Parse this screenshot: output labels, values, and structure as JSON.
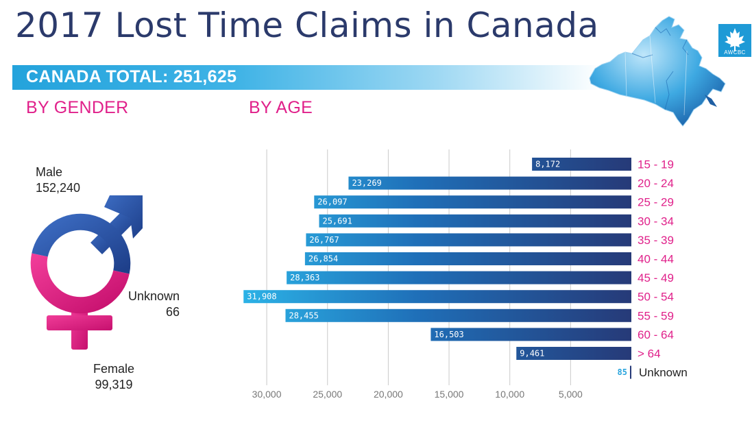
{
  "title": "2017 Lost Time Claims in Canada",
  "total": {
    "text": "CANADA TOTAL: 251,625"
  },
  "logo": {
    "text": "AWCBC"
  },
  "sections": {
    "gender": "BY GENDER",
    "age": "BY AGE"
  },
  "gender": {
    "male": {
      "label": "Male",
      "value": "152,240"
    },
    "unknown": {
      "label": "Unknown",
      "value": "66"
    },
    "female": {
      "label": "Female",
      "value": "99,319"
    }
  },
  "colors": {
    "title": "#2b3a6b",
    "accent_pink": "#e0208a",
    "band_blue": "#24a3dc",
    "bar_dark": "#263a78",
    "bar_light": "#2aa5dd"
  },
  "chart_data": {
    "type": "bar",
    "orientation": "horizontal",
    "direction": "bars extend right-to-left",
    "categories": [
      "15 - 19",
      "20 - 24",
      "25 - 29",
      "30 - 34",
      "35 - 39",
      "40 - 44",
      "45 - 49",
      "50 - 54",
      "55 - 59",
      "60 - 64",
      "> 64"
    ],
    "values": [
      8172,
      23269,
      26097,
      25691,
      26767,
      26854,
      28363,
      31908,
      28455,
      16503,
      9461
    ],
    "value_labels": [
      "8,172",
      "23,269",
      "26,097",
      "25,691",
      "26,767",
      "26,854",
      "28,363",
      "31,908",
      "28,455",
      "16,503",
      "9,461"
    ],
    "unknown": {
      "label": "Unknown",
      "value": 85,
      "value_label": "85"
    },
    "ticks": [
      30000,
      25000,
      20000,
      15000,
      10000,
      5000
    ],
    "tick_labels": [
      "30,000",
      "25,000",
      "20,000",
      "15,000",
      "10,000",
      "5,000"
    ],
    "xlim": [
      0,
      32000
    ],
    "grid": true
  }
}
